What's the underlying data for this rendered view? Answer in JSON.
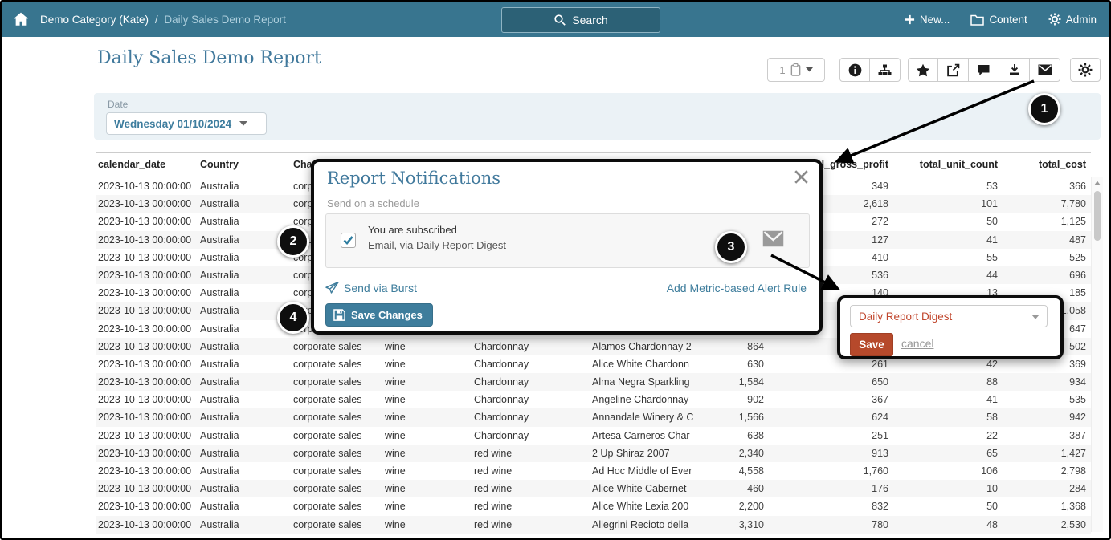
{
  "colors": {
    "header_bg": "#38758F",
    "accent_teal": "#3E7D9C",
    "title_teal": "#41799C",
    "save_orange": "#B6492B",
    "dropdown_red_text": "#C1472E",
    "filter_bg": "#EBF2F6"
  },
  "header": {
    "breadcrumb_parent": "Demo Category (Kate)",
    "breadcrumb_separator": "/",
    "breadcrumb_current": "Daily Sales Demo Report",
    "search_label": "Search",
    "new_label": "New...",
    "content_label": "Content",
    "admin_label": "Admin"
  },
  "page": {
    "title": "Daily Sales Demo Report"
  },
  "toolbar": {
    "pages_value": "1"
  },
  "filters": {
    "date_label": "Date",
    "date_value": "Wednesday 01/10/2024"
  },
  "table": {
    "columns": [
      {
        "label": "calendar_date",
        "align": "left"
      },
      {
        "label": "Country",
        "align": "left"
      },
      {
        "label": "Channel",
        "align": "left"
      },
      {
        "label": "",
        "align": "left"
      },
      {
        "label": "",
        "align": "left"
      },
      {
        "label": "",
        "align": "left"
      },
      {
        "label": "",
        "align": "right"
      },
      {
        "label": "total_gross_profit",
        "align": "right"
      },
      {
        "label": "total_unit_count",
        "align": "right"
      },
      {
        "label": "total_cost",
        "align": "right"
      }
    ],
    "rows": [
      [
        "2023-10-13 00:00:00",
        "Australia",
        "corporate sales",
        "",
        "",
        "",
        "",
        "349",
        "53",
        "366"
      ],
      [
        "2023-10-13 00:00:00",
        "Australia",
        "corporate sales",
        "",
        "",
        "",
        "",
        "2,618",
        "101",
        "7,780"
      ],
      [
        "2023-10-13 00:00:00",
        "Australia",
        "corporate sales",
        "",
        "",
        "",
        "",
        "272",
        "50",
        "1,125"
      ],
      [
        "2023-10-13 00:00:00",
        "Australia",
        "corporate sales",
        "",
        "",
        "",
        "",
        "127",
        "41",
        "487"
      ],
      [
        "2023-10-13 00:00:00",
        "Australia",
        "corporate sales",
        "",
        "",
        "",
        "",
        "410",
        "55",
        "525"
      ],
      [
        "2023-10-13 00:00:00",
        "Australia",
        "corporate sales",
        "",
        "",
        "",
        "",
        "536",
        "44",
        "696"
      ],
      [
        "2023-10-13 00:00:00",
        "Australia",
        "corporate sales",
        "",
        "",
        "",
        "",
        "140",
        "13",
        "185"
      ],
      [
        "2023-10-13 00:00:00",
        "Australia",
        "corporate sales",
        "",
        "",
        "",
        "",
        "",
        "",
        "1,058"
      ],
      [
        "2023-10-13 00:00:00",
        "Australia",
        "corporate sales",
        "",
        "",
        "",
        "",
        "",
        "",
        "647"
      ],
      [
        "2023-10-13 00:00:00",
        "Australia",
        "corporate sales",
        "wine",
        "Chardonnay",
        "Alamos Chardonnay 2",
        "864",
        "",
        "",
        "502"
      ],
      [
        "2023-10-13 00:00:00",
        "Australia",
        "corporate sales",
        "wine",
        "Chardonnay",
        "Alice White Chardonn",
        "630",
        "261",
        "42",
        "369"
      ],
      [
        "2023-10-13 00:00:00",
        "Australia",
        "corporate sales",
        "wine",
        "Chardonnay",
        "Alma Negra Sparkling",
        "1,584",
        "650",
        "88",
        "934"
      ],
      [
        "2023-10-13 00:00:00",
        "Australia",
        "corporate sales",
        "wine",
        "Chardonnay",
        "Angeline Chardonnay",
        "902",
        "367",
        "41",
        "535"
      ],
      [
        "2023-10-13 00:00:00",
        "Australia",
        "corporate sales",
        "wine",
        "Chardonnay",
        "Annandale Winery & C",
        "1,566",
        "624",
        "58",
        "942"
      ],
      [
        "2023-10-13 00:00:00",
        "Australia",
        "corporate sales",
        "wine",
        "Chardonnay",
        "Artesa Carneros Char",
        "638",
        "251",
        "22",
        "387"
      ],
      [
        "2023-10-13 00:00:00",
        "Australia",
        "corporate sales",
        "wine",
        "red wine",
        "2 Up Shiraz 2007",
        "2,340",
        "913",
        "65",
        "1,427"
      ],
      [
        "2023-10-13 00:00:00",
        "Australia",
        "corporate sales",
        "wine",
        "red wine",
        "Ad Hoc Middle of Ever",
        "4,558",
        "1,760",
        "106",
        "2,798"
      ],
      [
        "2023-10-13 00:00:00",
        "Australia",
        "corporate sales",
        "wine",
        "red wine",
        "Alice White Cabernet",
        "460",
        "176",
        "10",
        "284"
      ],
      [
        "2023-10-13 00:00:00",
        "Australia",
        "corporate sales",
        "wine",
        "red wine",
        "Alice White Lexia 200",
        "2,200",
        "832",
        "50",
        "1,368"
      ],
      [
        "2023-10-13 00:00:00",
        "Australia",
        "corporate sales",
        "wine",
        "red wine",
        "Allegrini Recioto della",
        "3,310",
        "780",
        "48",
        "2,530"
      ]
    ]
  },
  "modal": {
    "title": "Report Notifications",
    "subtitle": "Send on a schedule",
    "subscribed_label": "You are subscribed",
    "subscription_link": "Email, via Daily Report Digest",
    "send_via_burst": "Send via Burst",
    "add_alert_rule": "Add Metric-based Alert Rule",
    "save_button": "Save Changes"
  },
  "popup": {
    "dropdown_value": "Daily Report Digest",
    "save_button": "Save",
    "cancel_link": "cancel"
  },
  "callouts": [
    "1",
    "2",
    "3",
    "4"
  ]
}
